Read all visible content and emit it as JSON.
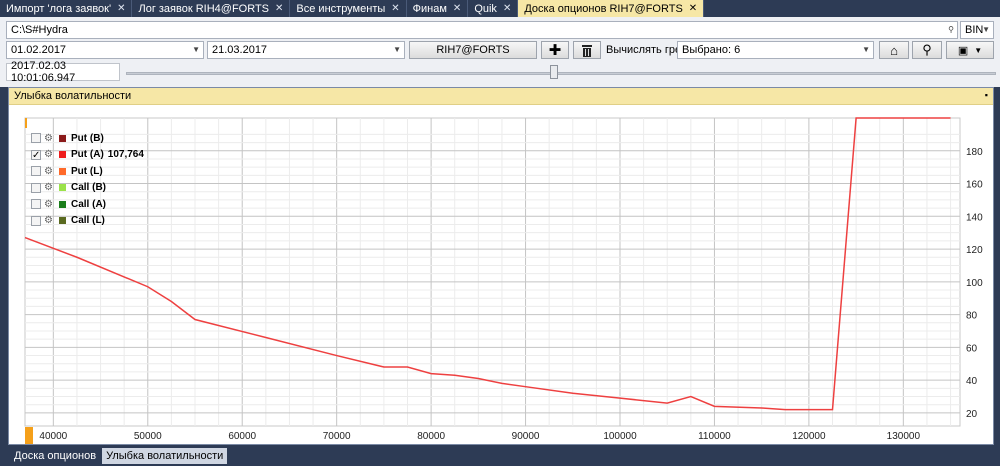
{
  "doc_tabs": [
    {
      "label": "Импорт 'лога заявок'",
      "active": false
    },
    {
      "label": "Лог заявок RIH4@FORTS",
      "active": false
    },
    {
      "label": "Все инструменты",
      "active": false
    },
    {
      "label": "Финам",
      "active": false
    },
    {
      "label": "Quik",
      "active": false
    },
    {
      "label": "Доска опционов RIH7@FORTS",
      "active": true
    }
  ],
  "toolbar": {
    "path_value": "C:\\S#Hydra",
    "format_value": "BIN",
    "from_date": "01.02.2017",
    "to_date": "21.03.2017",
    "security_button": "RIH7@FORTS",
    "greeks_label": "Вычислять греки:",
    "greeks_value": "Выбрано: 6",
    "timestamp": "2017.02.03 10:01:06.947",
    "slider_value": 0.5
  },
  "window": {
    "title": "Улыбка волатильности",
    "pin_glyph": "▪"
  },
  "legend": [
    {
      "name": "Put (B)",
      "color": "#8b1a1a",
      "checked": false,
      "value": ""
    },
    {
      "name": "Put (A)",
      "color": "#ee1c1c",
      "checked": true,
      "value": "107,764"
    },
    {
      "name": "Put (L)",
      "color": "#ff6a2a",
      "checked": false,
      "value": ""
    },
    {
      "name": "Call (B)",
      "color": "#9be24a",
      "checked": false,
      "value": ""
    },
    {
      "name": "Call (A)",
      "color": "#1a7d1a",
      "checked": false,
      "value": ""
    },
    {
      "name": "Call (L)",
      "color": "#5a6a20",
      "checked": false,
      "value": ""
    }
  ],
  "chart_data": {
    "type": "line",
    "title": "",
    "xlabel": "",
    "ylabel": "",
    "xlim": [
      37000,
      136000
    ],
    "ylim": [
      12,
      200
    ],
    "x_ticks": [
      40000,
      50000,
      60000,
      70000,
      80000,
      90000,
      100000,
      110000,
      120000,
      130000
    ],
    "y_ticks": [
      20,
      40,
      60,
      80,
      100,
      120,
      140,
      160,
      180
    ],
    "grid": true,
    "series": [
      {
        "name": "Put (A)",
        "color": "#ee4040",
        "x": [
          37000,
          42500,
          50000,
          52500,
          55000,
          62500,
          70000,
          75000,
          77500,
          80000,
          82500,
          85000,
          87500,
          90000,
          95000,
          100000,
          105000,
          107500,
          110000,
          115000,
          117500,
          122500,
          125000,
          135000
        ],
        "y": [
          127,
          115,
          97,
          88,
          77,
          66,
          55,
          48,
          48,
          44,
          43,
          41,
          38,
          36,
          32,
          29,
          26,
          30,
          24,
          23,
          22,
          22,
          200,
          200
        ]
      }
    ]
  },
  "bottom_tabs": [
    {
      "label": "Доска опционов",
      "active": false
    },
    {
      "label": "Улыбка волатильности",
      "active": true
    }
  ]
}
